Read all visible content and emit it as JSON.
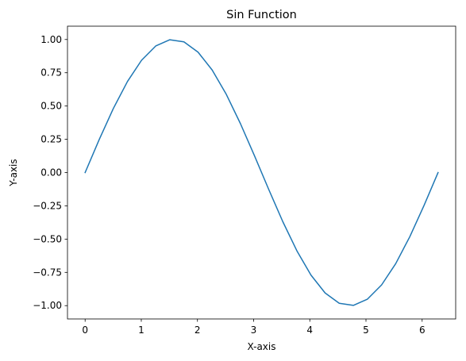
{
  "chart_data": {
    "type": "line",
    "title": "Sin Function",
    "xlabel": "X-axis",
    "ylabel": "Y-axis",
    "xlim": [
      -0.314,
      6.597
    ],
    "ylim": [
      -1.1,
      1.1
    ],
    "grid": false,
    "legend": "none",
    "x_ticks": [
      0,
      1,
      2,
      3,
      4,
      5,
      6
    ],
    "y_ticks": [
      -1.0,
      -0.75,
      -0.5,
      -0.25,
      0.0,
      0.25,
      0.5,
      0.75,
      1.0
    ],
    "x_tick_labels": [
      "0",
      "1",
      "2",
      "3",
      "4",
      "5",
      "6"
    ],
    "y_tick_labels": [
      "−1.00",
      "−0.75",
      "−0.50",
      "−0.25",
      "0.00",
      "0.25",
      "0.50",
      "0.75",
      "1.00"
    ],
    "series": [
      {
        "color": "#1f77b4",
        "x": [
          0.0,
          0.2513,
          0.5027,
          0.754,
          1.0053,
          1.2566,
          1.508,
          1.7593,
          2.0106,
          2.2619,
          2.5133,
          2.7646,
          3.0159,
          3.2673,
          3.5186,
          3.7699,
          4.0212,
          4.2726,
          4.5239,
          4.7752,
          5.0265,
          5.2779,
          5.5292,
          5.7805,
          6.0319,
          6.2832
        ],
        "y": [
          0.0,
          0.2487,
          0.4818,
          0.6845,
          0.8443,
          0.9511,
          0.998,
          0.9823,
          0.9048,
          0.7705,
          0.5878,
          0.3681,
          0.1253,
          -0.1253,
          -0.3681,
          -0.5878,
          -0.7705,
          -0.9048,
          -0.9823,
          -0.998,
          -0.9511,
          -0.8443,
          -0.6845,
          -0.4818,
          -0.2487,
          0.0
        ]
      }
    ]
  }
}
